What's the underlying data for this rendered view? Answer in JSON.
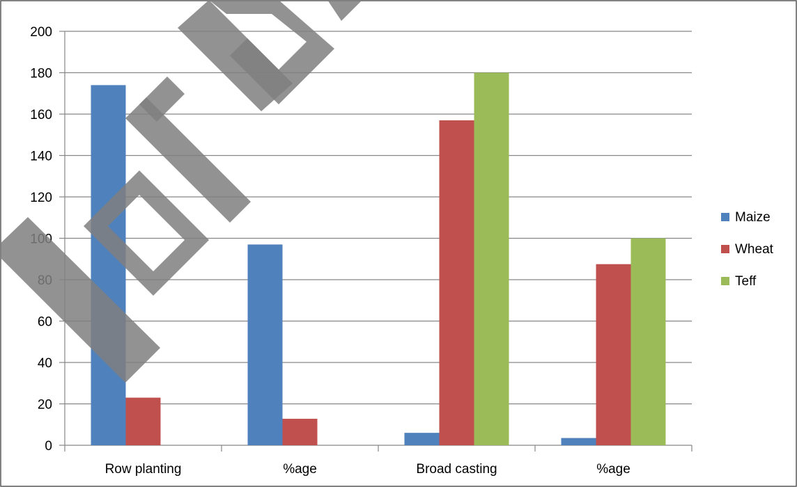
{
  "chart_data": {
    "type": "bar",
    "categories": [
      "Row planting",
      "%age",
      "Broad casting",
      "%age"
    ],
    "series": [
      {
        "name": "Maize",
        "color": "#4f81bd",
        "values": [
          174,
          97,
          6,
          3.5
        ]
      },
      {
        "name": "Wheat",
        "color": "#c0504d",
        "values": [
          23,
          12.8,
          157,
          87.5
        ]
      },
      {
        "name": "Teff",
        "color": "#9bbb59",
        "values": [
          0,
          0,
          180,
          100
        ]
      }
    ],
    "ylim": [
      0,
      200
    ],
    "yticks": [
      0,
      20,
      40,
      60,
      80,
      100,
      120,
      140,
      160,
      180,
      200
    ],
    "grid": true,
    "legend_position": "right"
  },
  "watermark": {
    "text": "For P",
    "color": "#7f7f7f"
  }
}
